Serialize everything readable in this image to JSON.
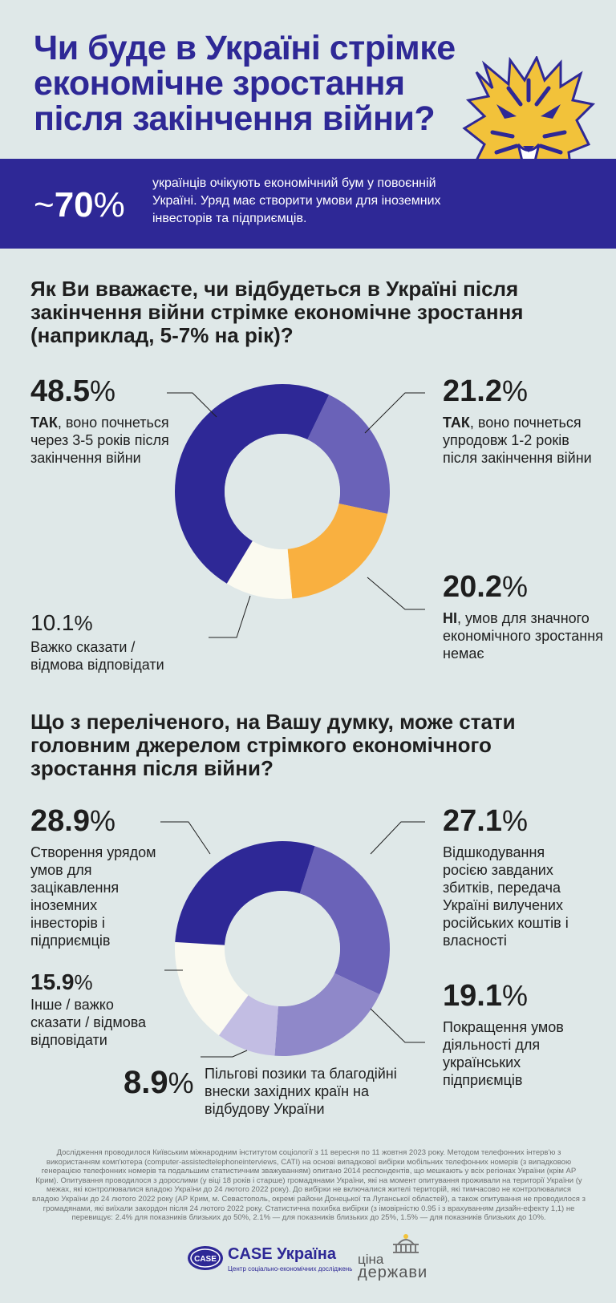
{
  "header": {
    "title": "Чи буде в Україні стрімке економічне зростання після закінчення війни?"
  },
  "banner": {
    "stat_prefix": "~",
    "stat_value": "70",
    "stat_suffix": "%",
    "text": "українців очікують економічний бум у повоєнній Україні. Уряд має створити умови для іноземних інвесторів та підприємців."
  },
  "colors": {
    "dark_blue": "#2e2896",
    "mid_purple": "#6a62b8",
    "light_purple": "#8f88c9",
    "lavender": "#c2bde3",
    "orange": "#f9b040",
    "cream": "#fbfaf0",
    "background": "#dfe8e8"
  },
  "q1": {
    "question": "Як Ви вважаєте, чи відбудеться в Україні після закінчення війни стрімке економічне зростання (наприклад, 5-7% на рік)?",
    "labels": [
      {
        "value": "48.5",
        "bold": "ТАК",
        "text": ", воно почнеться через 3-5 років після закінчення війни"
      },
      {
        "value": "21.2",
        "bold": "ТАК",
        "text": ", воно почнеться упродовж 1-2 років після закінчення війни"
      },
      {
        "value": "20.2",
        "bold": "НІ",
        "text": ", умов для значного економічного зростання немає"
      },
      {
        "value": "10.1",
        "bold": "",
        "text": "Важко сказати / відмова відповідати"
      }
    ]
  },
  "q2": {
    "question": "Що з переліченого, на Вашу думку, може стати головним джерелом стрімкого економічного зростання після війни?",
    "labels": [
      {
        "value": "28.9",
        "text": "Створення урядом умов для зацікавлення іноземних інвесторів і підприємців"
      },
      {
        "value": "27.1",
        "text": "Відшкодування росією завданих збитків, передача Україні вилучених російських коштів і власності"
      },
      {
        "value": "19.1",
        "text": "Покращення умов діяльності для українських підприємців"
      },
      {
        "value": "8.9",
        "text": "Пільгові позики та благодійні внески західних країн на відбудову України"
      },
      {
        "value": "15.9",
        "text": "Інше / важко сказати / відмова відповідати"
      }
    ]
  },
  "chart_data": [
    {
      "type": "pie",
      "categories": [
        "ТАК, воно почнеться упродовж 1-2 років після закінчення війни",
        "НІ, умов для значного економічного зростання немає",
        "Важко сказати / відмова відповідати",
        "ТАК, воно почнеться через 3-5 років після закінчення війни"
      ],
      "values": [
        21.2,
        20.2,
        10.1,
        48.5
      ],
      "colors": [
        "#6a62b8",
        "#f9b040",
        "#fbfaf0",
        "#2e2896"
      ],
      "title": "Як Ви вважаєте, чи відбудеться в Україні після закінчення війни стрімке економічне зростання (наприклад, 5-7% на рік)?"
    },
    {
      "type": "pie",
      "categories": [
        "Відшкодування росією завданих збитків, передача Україні вилучених російських коштів і власності",
        "Покращення умов діяльності для українських підприємців",
        "Пільгові позики та благодійні внески західних країн на відбудову України",
        "Інше / важко сказати / відмова відповідати",
        "Створення урядом умов для зацікавлення іноземних інвесторів і підприємців"
      ],
      "values": [
        27.1,
        19.1,
        8.9,
        15.9,
        28.9
      ],
      "colors": [
        "#6a62b8",
        "#8f88c9",
        "#c2bde3",
        "#fbfaf0",
        "#2e2896"
      ],
      "title": "Що з переліченого, на Вашу думку, може стати головним джерелом стрімкого економічного зростання після війни?"
    }
  ],
  "footnote": "Дослідження проводилося Київським міжнародним інститутом соціології з 11 вересня по 11 жовтня 2023 року. Методом телефонних інтерв'ю з використанням комп'ютера (computer-assistedtelephoneinterviews, CATI) на основі випадкової вибірки мобільних телефонних номерів (з випадковою генерацією телефонних номерів та подальшим статистичним зважуванням) опитано 2014 респондентів, що мешкають у всіх регіонах України (крім АР Крим). Опитування проводилося з дорослими (у віці 18 років і старше) громадянами України, які на момент опитування проживали на території України (у межах, які контролювалися владою України до 24 лютого 2022 року). До вибірки не включалися жителі територій, які тимчасово не контролювалися владою України до 24 лютого 2022 року (АР Крим, м. Севастополь, окремі райони Донецької та Луганської областей), а також опитування не проводилося з громадянами, які виїхали закордон після 24 лютого 2022 року. Статистична похибка вибірки (з імовірністю 0.95 і з врахуванням дизайн-ефекту 1,1) не перевищує: 2.4% для показників близьких до 50%, 2.1% — для показників близьких до 25%, 1.5% — для показників близьких до 10%.",
  "logos": {
    "case_badge": "CASE",
    "case_name": "CASE Україна",
    "case_sub": "Центр соціально-економічних досліджень",
    "cina_line1": "ціна",
    "cina_line2": "держави"
  }
}
